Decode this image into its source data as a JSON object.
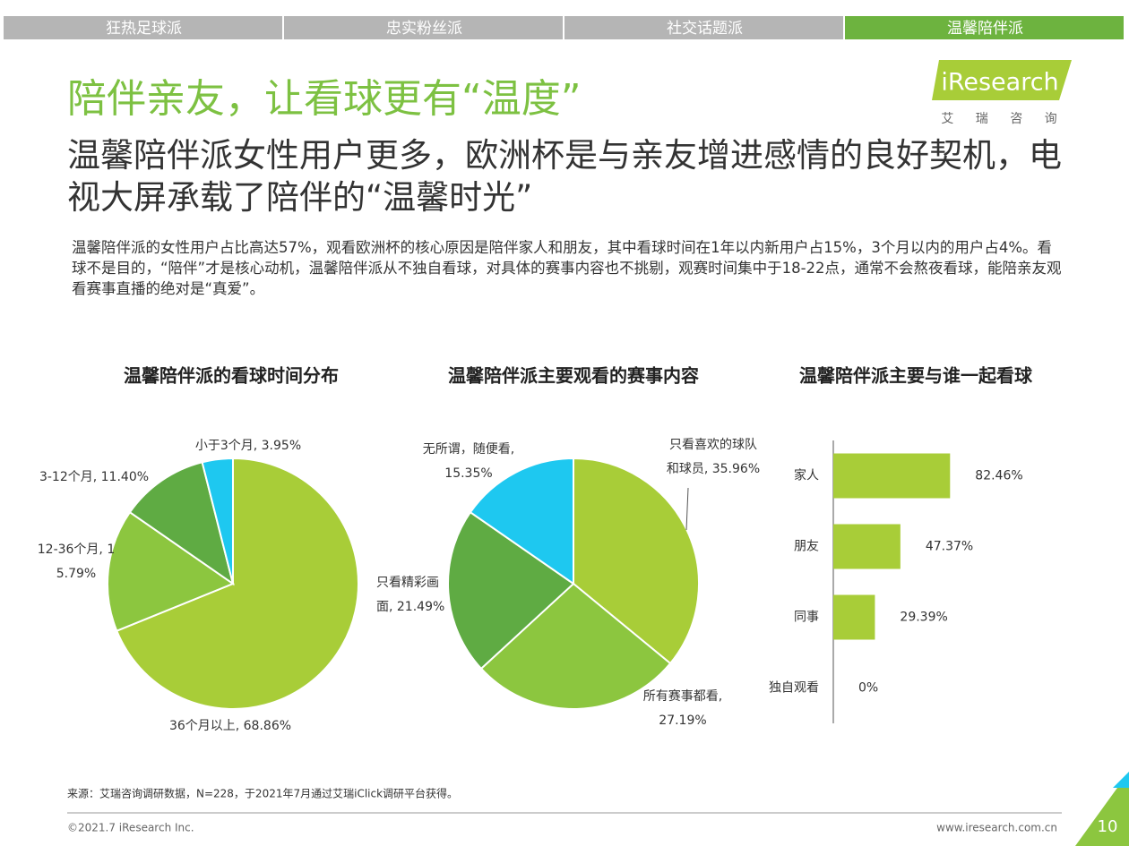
{
  "tabs": [
    "狂热足球派",
    "忠实粉丝派",
    "社交话题派",
    "温馨陪伴派"
  ],
  "title": "陪伴亲友，让看球更有“温度”",
  "logo": "iResearch",
  "logo_sub": "艾 瑞 咨 询",
  "headline": "温馨陪伴派女性用户更多，欧洲杯是与亲友增进感情的良好契机，电视大屏承载了陪伴的“温馨时光”",
  "body": "温馨陪伴派的女性用户占比高达57%，观看欧洲杯的核心原因是陪伴家人和朋友，其中看球时间在1年以内新用户占15%，3个月以内的用户占4%。看球不是目的，“陪伴”才是核心动机，温馨陪伴派从不独自看球，对具体的赛事内容也不挑剔，观赛时间集中于18-22点，通常不会熬夜看球，能陪亲友观看赛事直播的绝对是“真爱”。",
  "chart_data": [
    {
      "type": "pie",
      "title": "温馨陪伴派的看球时间分布",
      "values": [
        68.86,
        15.79,
        11.4,
        3.95
      ],
      "value_labels": [
        "36个月以上, 68.86%",
        "12-36个月, 15.79%",
        "3-12个月, 11.40%",
        "小于3个月, 3.95%"
      ],
      "colors": [
        "#a8cd38",
        "#8cc63f",
        "#5fab43",
        "#1ec8f0"
      ]
    },
    {
      "type": "pie",
      "title": "温馨陪伴派主要观看的赛事内容",
      "values": [
        35.96,
        27.19,
        21.49,
        15.35
      ],
      "value_labels": [
        "只看喜欢的球队和球员, 35.96%",
        "所有赛事都看, 27.19%",
        "只看精彩画面, 21.49%",
        "无所谓，随便看, 15.35%"
      ],
      "colors": [
        "#a8cd38",
        "#8cc63f",
        "#5fab43",
        "#1ec8f0"
      ]
    },
    {
      "type": "hbar",
      "title": "温馨陪伴派主要与谁一起看球",
      "categories": [
        "家人",
        "朋友",
        "同事",
        "独自观看"
      ],
      "values": [
        82.46,
        47.37,
        29.39,
        0
      ],
      "value_labels": [
        "82.46%",
        "47.37%",
        "29.39%",
        "0%"
      ],
      "color": "#a8cd38",
      "xlim": [
        0,
        100
      ]
    }
  ],
  "source": "来源：艾瑞咨询调研数据，N=228，于2021年7月通过艾瑞iClick调研平台获得。",
  "copyright": "©2021.7 iResearch Inc.",
  "url": "www.iresearch.com.cn",
  "page": "10"
}
